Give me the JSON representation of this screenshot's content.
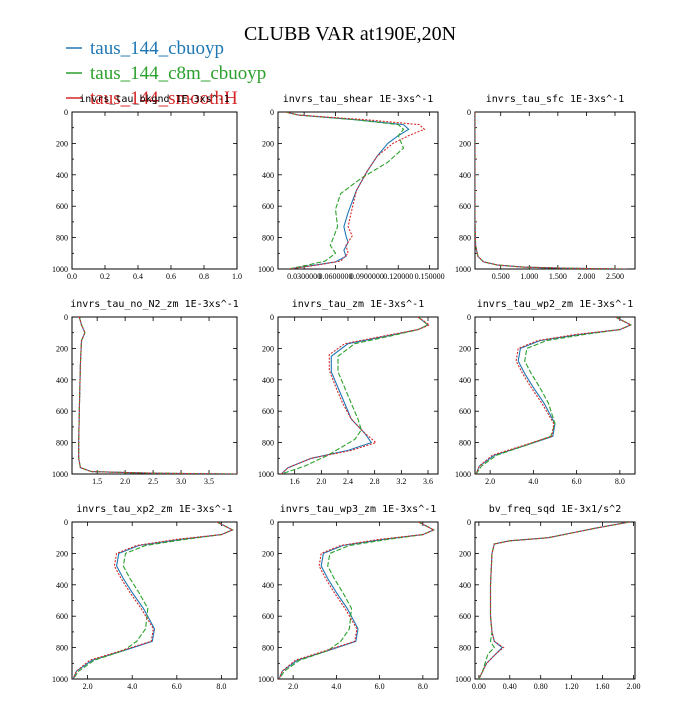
{
  "title": "CLUBB VAR at190E,20N",
  "legend": [
    {
      "name": "taus_144_cbuoyp",
      "color": "#1f77b4"
    },
    {
      "name": "taus_144_c8m_cbuoyp",
      "color": "#2ca02c"
    },
    {
      "name": "taus_144_smoothH",
      "color": "#d62728"
    }
  ],
  "chart_data": [
    {
      "type": "line",
      "title": "invrs_tau_bkgnd 1E-3xs^-1",
      "xlim": [
        0,
        1.0
      ],
      "ylim": [
        1000,
        0
      ],
      "xticks": [
        "0.0",
        "0.2",
        "0.4",
        "0.6",
        "0.8",
        "1.0"
      ],
      "xtick_values": [
        0,
        0.2,
        0.4,
        0.6,
        0.8,
        1.0
      ],
      "yticks": [
        0,
        200,
        400,
        600,
        800,
        1000
      ],
      "series": []
    },
    {
      "type": "line",
      "title": "invrs_tau_shear 1E-3xs^-1",
      "xlim": [
        0.005,
        0.158
      ],
      "ylim": [
        1000,
        0
      ],
      "xticks": [
        "0.0300000",
        "0.0600000",
        "0.0900000",
        "0.120000",
        "0.150000"
      ],
      "xtick_values": [
        0.03,
        0.06,
        0.09,
        0.12,
        0.15
      ],
      "yticks": [
        0,
        200,
        400,
        600,
        800,
        1000
      ],
      "series": [
        {
          "name": "taus_144_cbuoyp",
          "x": [
            0.012,
            0.025,
            0.08,
            0.125,
            0.13,
            0.12,
            0.11,
            0.1,
            0.09,
            0.08,
            0.072,
            0.068,
            0.07,
            0.072,
            0.068,
            0.07,
            0.06,
            0.035,
            0.015
          ],
          "y": [
            0,
            20,
            50,
            80,
            110,
            150,
            200,
            280,
            380,
            500,
            640,
            730,
            790,
            830,
            880,
            920,
            955,
            980,
            1000
          ]
        },
        {
          "name": "taus_144_c8m_cbuoyp",
          "x": [
            0.012,
            0.025,
            0.08,
            0.12,
            0.125,
            0.12,
            0.125,
            0.11,
            0.085,
            0.065,
            0.06,
            0.062,
            0.058,
            0.055,
            0.06,
            0.05,
            0.03,
            0.015
          ],
          "y": [
            0,
            20,
            50,
            80,
            110,
            150,
            230,
            320,
            420,
            520,
            620,
            730,
            800,
            850,
            900,
            950,
            980,
            1000
          ]
        },
        {
          "name": "taus_144_smoothH",
          "x": [
            0.012,
            0.025,
            0.09,
            0.14,
            0.145,
            0.13,
            0.115,
            0.1,
            0.09,
            0.08,
            0.075,
            0.072,
            0.076,
            0.07,
            0.072,
            0.065,
            0.04,
            0.015
          ],
          "y": [
            0,
            20,
            50,
            80,
            110,
            150,
            200,
            280,
            380,
            500,
            640,
            730,
            790,
            850,
            900,
            950,
            978,
            1000
          ]
        }
      ]
    },
    {
      "type": "line",
      "title": "invrs_tau_sfc 1E-3xs^-1",
      "xlim": [
        0.05,
        2.85
      ],
      "ylim": [
        1000,
        0
      ],
      "xticks": [
        "0.500",
        "1.000",
        "1.500",
        "2.000",
        "2.500"
      ],
      "xtick_values": [
        0.5,
        1.0,
        1.5,
        2.0,
        2.5
      ],
      "yticks": [
        0,
        200,
        400,
        600,
        800,
        1000
      ],
      "series": [
        {
          "name": "taus_144_cbuoyp",
          "x": [
            0.05,
            0.05,
            0.06,
            0.1,
            0.2,
            0.45,
            0.9,
            1.6,
            2.7
          ],
          "y": [
            0,
            700,
            850,
            920,
            955,
            975,
            988,
            995,
            1000
          ]
        },
        {
          "name": "taus_144_c8m_cbuoyp",
          "x": [
            0.05,
            0.05,
            0.06,
            0.1,
            0.2,
            0.45,
            0.9,
            1.6,
            2.7
          ],
          "y": [
            0,
            700,
            850,
            920,
            955,
            975,
            988,
            995,
            1000
          ]
        },
        {
          "name": "taus_144_smoothH",
          "x": [
            0.05,
            0.05,
            0.06,
            0.1,
            0.2,
            0.45,
            0.9,
            1.6,
            2.7
          ],
          "y": [
            0,
            700,
            850,
            920,
            955,
            975,
            988,
            995,
            1000
          ]
        }
      ]
    },
    {
      "type": "line",
      "title": "invrs_tau_no_N2_zm 1E-3xs^-1",
      "xlim": [
        1.05,
        4.0
      ],
      "ylim": [
        1000,
        0
      ],
      "xticks": [
        "1.5",
        "2.0",
        "2.5",
        "3.0",
        "3.5"
      ],
      "xtick_values": [
        1.5,
        2.0,
        2.5,
        3.0,
        3.5
      ],
      "yticks": [
        0,
        200,
        400,
        600,
        800,
        1000
      ],
      "series": [
        {
          "name": "taus_144_cbuoyp",
          "x": [
            1.18,
            1.22,
            1.28,
            1.22,
            1.2,
            1.18,
            1.17,
            1.17,
            1.2,
            1.4,
            2.5,
            4.0
          ],
          "y": [
            0,
            50,
            100,
            150,
            300,
            600,
            800,
            900,
            960,
            985,
            995,
            1000
          ]
        },
        {
          "name": "taus_144_c8m_cbuoyp",
          "x": [
            1.18,
            1.22,
            1.28,
            1.22,
            1.2,
            1.18,
            1.17,
            1.17,
            1.2,
            1.4,
            2.5,
            4.0
          ],
          "y": [
            0,
            50,
            100,
            150,
            300,
            600,
            800,
            900,
            960,
            985,
            995,
            1000
          ]
        },
        {
          "name": "taus_144_smoothH",
          "x": [
            1.18,
            1.22,
            1.28,
            1.22,
            1.2,
            1.18,
            1.17,
            1.17,
            1.2,
            1.4,
            2.5,
            4.0
          ],
          "y": [
            0,
            50,
            100,
            150,
            300,
            600,
            800,
            900,
            960,
            985,
            995,
            1000
          ]
        }
      ]
    },
    {
      "type": "line",
      "title": "invrs_tau_zm 1E-3xs^-1",
      "xlim": [
        1.35,
        3.75
      ],
      "ylim": [
        1000,
        0
      ],
      "xticks": [
        "1.6",
        "2.0",
        "2.4",
        "2.8",
        "3.2",
        "3.6"
      ],
      "xtick_values": [
        1.6,
        2.0,
        2.4,
        2.8,
        3.2,
        3.6
      ],
      "yticks": [
        0,
        200,
        400,
        600,
        800,
        1000
      ],
      "series": [
        {
          "name": "taus_144_cbuoyp",
          "x": [
            3.45,
            3.6,
            3.45,
            3.0,
            2.4,
            2.15,
            2.15,
            2.25,
            2.35,
            2.45,
            2.65,
            2.75,
            2.4,
            1.85,
            1.5,
            1.4
          ],
          "y": [
            0,
            50,
            80,
            120,
            170,
            250,
            350,
            450,
            550,
            650,
            740,
            800,
            850,
            900,
            960,
            1000
          ]
        },
        {
          "name": "taus_144_c8m_cbuoyp",
          "x": [
            3.45,
            3.6,
            3.45,
            3.05,
            2.5,
            2.25,
            2.25,
            2.35,
            2.45,
            2.55,
            2.6,
            2.5,
            2.3,
            2.1,
            1.75,
            1.4
          ],
          "y": [
            0,
            50,
            80,
            120,
            170,
            250,
            350,
            450,
            550,
            650,
            720,
            780,
            830,
            880,
            950,
            1000
          ]
        },
        {
          "name": "taus_144_smoothH",
          "x": [
            3.45,
            3.62,
            3.45,
            2.95,
            2.35,
            2.12,
            2.12,
            2.22,
            2.32,
            2.45,
            2.65,
            2.82,
            2.45,
            1.85,
            1.5,
            1.4
          ],
          "y": [
            0,
            50,
            80,
            120,
            170,
            240,
            340,
            450,
            550,
            650,
            740,
            800,
            850,
            900,
            960,
            1000
          ]
        }
      ]
    },
    {
      "type": "line",
      "title": "invrs_tau_wp2_zm 1E-3xs^-1",
      "xlim": [
        1.3,
        8.7
      ],
      "ylim": [
        1000,
        0
      ],
      "xticks": [
        "2.0",
        "4.0",
        "6.0",
        "8.0"
      ],
      "xtick_values": [
        2.0,
        4.0,
        6.0,
        8.0
      ],
      "yticks": [
        0,
        200,
        400,
        600,
        800,
        1000
      ],
      "series": [
        {
          "name": "taus_144_cbuoyp",
          "x": [
            7.8,
            8.5,
            8.0,
            6.2,
            4.3,
            3.4,
            3.3,
            3.6,
            4.0,
            4.5,
            5.0,
            4.9,
            3.6,
            2.2,
            1.5,
            1.35
          ],
          "y": [
            0,
            50,
            80,
            110,
            150,
            200,
            280,
            360,
            450,
            550,
            680,
            760,
            820,
            880,
            950,
            1000
          ]
        },
        {
          "name": "taus_144_c8m_cbuoyp",
          "x": [
            7.8,
            8.5,
            8.0,
            6.4,
            4.6,
            3.7,
            3.6,
            3.9,
            4.3,
            4.7,
            5.0,
            4.8,
            3.6,
            2.3,
            1.6,
            1.35
          ],
          "y": [
            0,
            50,
            80,
            110,
            150,
            200,
            280,
            360,
            450,
            550,
            680,
            760,
            820,
            880,
            950,
            1000
          ]
        },
        {
          "name": "taus_144_smoothH",
          "x": [
            7.8,
            8.5,
            8.0,
            6.0,
            4.2,
            3.3,
            3.2,
            3.5,
            3.9,
            4.4,
            4.95,
            4.85,
            3.5,
            2.1,
            1.5,
            1.35
          ],
          "y": [
            0,
            50,
            80,
            110,
            150,
            200,
            280,
            360,
            450,
            550,
            680,
            760,
            820,
            880,
            950,
            1000
          ]
        }
      ]
    },
    {
      "type": "line",
      "title": "invrs_tau_xp2_zm 1E-3xs^-1",
      "xlim": [
        1.3,
        8.7
      ],
      "ylim": [
        1000,
        0
      ],
      "xticks": [
        "2.0",
        "4.0",
        "6.0",
        "8.0"
      ],
      "xtick_values": [
        2.0,
        4.0,
        6.0,
        8.0
      ],
      "yticks": [
        0,
        200,
        400,
        600,
        800,
        1000
      ],
      "series": [
        {
          "name": "taus_144_cbuoyp",
          "x": [
            7.8,
            8.5,
            8.0,
            6.2,
            4.3,
            3.4,
            3.3,
            3.6,
            4.0,
            4.5,
            5.0,
            4.9,
            3.6,
            2.2,
            1.5,
            1.35
          ],
          "y": [
            0,
            50,
            80,
            110,
            150,
            200,
            280,
            360,
            450,
            550,
            680,
            760,
            820,
            880,
            950,
            1000
          ]
        },
        {
          "name": "taus_144_c8m_cbuoyp",
          "x": [
            7.8,
            8.5,
            8.0,
            6.4,
            4.6,
            3.7,
            3.6,
            3.9,
            4.3,
            4.7,
            4.6,
            4.2,
            3.6,
            2.3,
            1.6,
            1.35
          ],
          "y": [
            0,
            50,
            80,
            110,
            150,
            200,
            280,
            360,
            450,
            550,
            680,
            760,
            820,
            880,
            950,
            1000
          ]
        },
        {
          "name": "taus_144_smoothH",
          "x": [
            7.8,
            8.5,
            8.0,
            6.0,
            4.2,
            3.3,
            3.2,
            3.5,
            3.9,
            4.4,
            4.95,
            4.85,
            3.5,
            2.1,
            1.5,
            1.35
          ],
          "y": [
            0,
            50,
            80,
            110,
            150,
            200,
            280,
            360,
            450,
            550,
            680,
            760,
            820,
            880,
            950,
            1000
          ]
        }
      ]
    },
    {
      "type": "line",
      "title": "invrs_tau_wp3_zm 1E-3xs^-1",
      "xlim": [
        1.3,
        8.7
      ],
      "ylim": [
        1000,
        0
      ],
      "xticks": [
        "2.0",
        "4.0",
        "6.0",
        "8.0"
      ],
      "xtick_values": [
        2.0,
        4.0,
        6.0,
        8.0
      ],
      "yticks": [
        0,
        200,
        400,
        600,
        800,
        1000
      ],
      "series": [
        {
          "name": "taus_144_cbuoyp",
          "x": [
            7.8,
            8.5,
            8.0,
            6.2,
            4.3,
            3.4,
            3.3,
            3.6,
            4.0,
            4.5,
            5.0,
            4.9,
            3.6,
            2.2,
            1.5,
            1.35
          ],
          "y": [
            0,
            50,
            80,
            110,
            150,
            200,
            280,
            360,
            450,
            550,
            680,
            760,
            820,
            880,
            950,
            1000
          ]
        },
        {
          "name": "taus_144_c8m_cbuoyp",
          "x": [
            7.8,
            8.5,
            8.0,
            6.4,
            4.6,
            3.7,
            3.6,
            3.9,
            4.3,
            4.7,
            4.6,
            4.2,
            3.6,
            2.3,
            1.6,
            1.35
          ],
          "y": [
            0,
            50,
            80,
            110,
            150,
            200,
            280,
            360,
            450,
            550,
            680,
            760,
            820,
            880,
            950,
            1000
          ]
        },
        {
          "name": "taus_144_smoothH",
          "x": [
            7.8,
            8.5,
            8.0,
            6.0,
            4.2,
            3.3,
            3.2,
            3.5,
            3.9,
            4.4,
            4.95,
            4.85,
            3.5,
            2.1,
            1.5,
            1.35
          ],
          "y": [
            0,
            50,
            80,
            110,
            150,
            200,
            280,
            360,
            450,
            550,
            680,
            760,
            820,
            880,
            950,
            1000
          ]
        }
      ]
    },
    {
      "type": "line",
      "title": "bv_freq_sqd 1E-3x1/s^2",
      "xlim": [
        -0.05,
        2.02
      ],
      "ylim": [
        1000,
        0
      ],
      "xticks": [
        "0.00",
        "0.40",
        "0.80",
        "1.20",
        "1.60",
        "2.00"
      ],
      "xtick_values": [
        0.0,
        0.4,
        0.8,
        1.2,
        1.6,
        2.0
      ],
      "yticks": [
        0,
        200,
        400,
        600,
        800,
        1000
      ],
      "series": [
        {
          "name": "taus_144_cbuoyp",
          "x": [
            1.95,
            1.5,
            1.2,
            0.9,
            0.4,
            0.2,
            0.17,
            0.15,
            0.15,
            0.17,
            0.2,
            0.3,
            0.22,
            0.1,
            0.05,
            0.0
          ],
          "y": [
            0,
            40,
            70,
            100,
            120,
            140,
            200,
            400,
            600,
            700,
            760,
            800,
            840,
            900,
            950,
            1000
          ]
        },
        {
          "name": "taus_144_c8m_cbuoyp",
          "x": [
            1.95,
            1.5,
            1.2,
            0.9,
            0.4,
            0.2,
            0.17,
            0.15,
            0.15,
            0.17,
            0.15,
            0.2,
            0.12,
            0.08,
            0.05,
            0.0
          ],
          "y": [
            0,
            40,
            70,
            100,
            120,
            140,
            200,
            400,
            600,
            700,
            760,
            800,
            840,
            900,
            950,
            1000
          ]
        },
        {
          "name": "taus_144_smoothH",
          "x": [
            1.95,
            1.5,
            1.2,
            0.9,
            0.4,
            0.2,
            0.17,
            0.15,
            0.15,
            0.17,
            0.2,
            0.32,
            0.22,
            0.1,
            0.05,
            0.0
          ],
          "y": [
            0,
            40,
            70,
            100,
            120,
            140,
            200,
            400,
            600,
            700,
            760,
            800,
            840,
            900,
            950,
            1000
          ]
        }
      ]
    }
  ]
}
